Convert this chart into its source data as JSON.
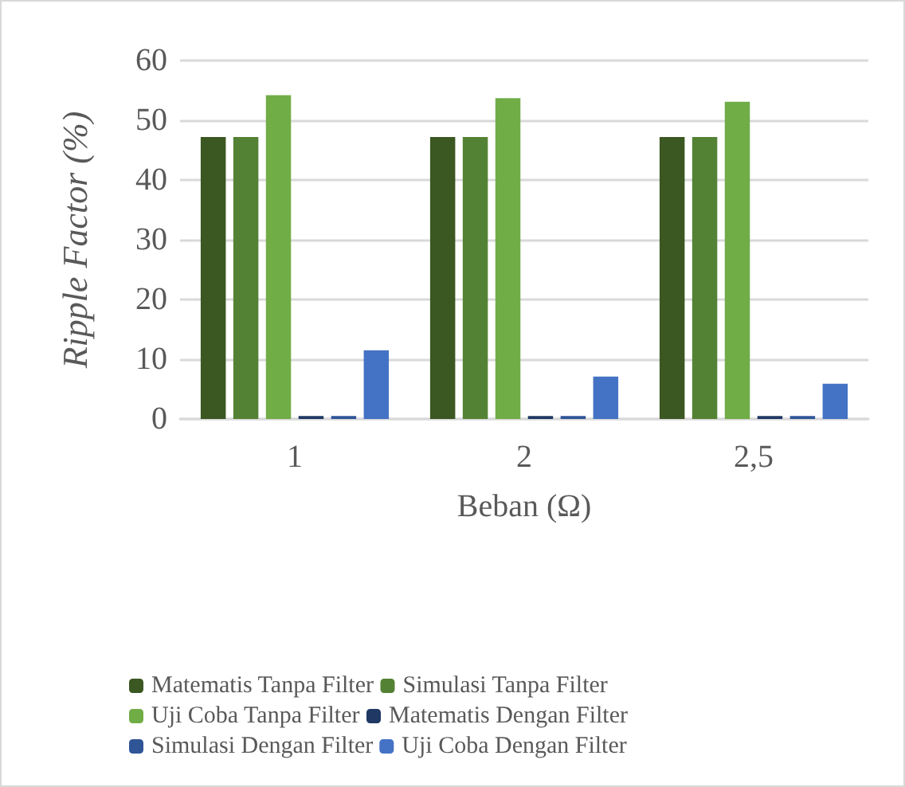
{
  "chart_data": {
    "type": "bar",
    "xlabel": "Beban (Ω)",
    "ylabel": "Ripple Factor (%)",
    "categories": [
      "1",
      "2",
      "2,5"
    ],
    "series": [
      {
        "name": "Matematis Tanpa Filter",
        "color": "#3b5722",
        "values": [
          47.2,
          47.2,
          47.2
        ]
      },
      {
        "name": "Simulasi Tanpa Filter",
        "color": "#548235",
        "values": [
          47.2,
          47.2,
          47.2
        ]
      },
      {
        "name": "Uji Coba Tanpa Filter",
        "color": "#70ad47",
        "values": [
          54.2,
          53.7,
          53.1
        ]
      },
      {
        "name": "Matematis Dengan Filter",
        "color": "#1f3864",
        "values": [
          0.5,
          0.5,
          0.5
        ]
      },
      {
        "name": "Simulasi Dengan Filter",
        "color": "#2f5597",
        "values": [
          0.5,
          0.5,
          0.5
        ]
      },
      {
        "name": "Uji Coba Dengan Filter",
        "color": "#4472c4",
        "values": [
          11.5,
          7.1,
          5.9
        ]
      }
    ],
    "ylim": [
      0,
      60
    ],
    "yticks": [
      0,
      10,
      20,
      30,
      40,
      50,
      60
    ],
    "grid": "y",
    "legend": "bottom"
  }
}
